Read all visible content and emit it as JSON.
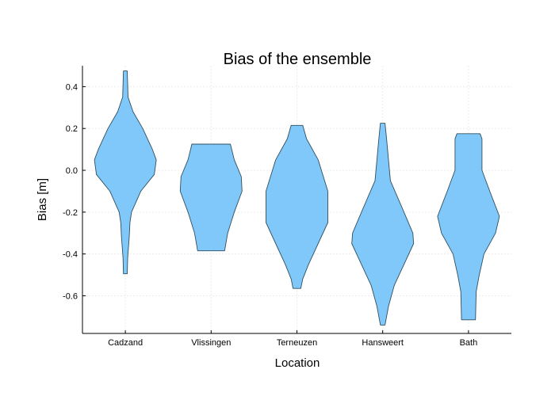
{
  "chart_data": {
    "type": "violin",
    "title": "Bias of the ensemble",
    "xlabel": "Location",
    "ylabel": "Bias [m]",
    "categories": [
      "Cadzand",
      "Vlissingen",
      "Terneuzen",
      "Hansweert",
      "Bath"
    ],
    "ylim": [
      -0.78,
      0.5
    ],
    "yticks": [
      0.4,
      0.2,
      0.0,
      -0.2,
      -0.4,
      -0.6
    ],
    "ytick_labels": [
      "0.4",
      "0.2",
      "0.0",
      "-0.2",
      "-0.4",
      "-0.6"
    ],
    "grid": true,
    "fill_color": "#80c8fa",
    "edge_color": "#2f4f5f",
    "series": [
      {
        "category": "Cadzand",
        "profile": [
          [
            0.475,
            0.05
          ],
          [
            0.35,
            0.07
          ],
          [
            0.28,
            0.2
          ],
          [
            0.2,
            0.45
          ],
          [
            0.1,
            0.7
          ],
          [
            0.05,
            0.8
          ],
          [
            -0.02,
            0.75
          ],
          [
            -0.1,
            0.4
          ],
          [
            -0.2,
            0.16
          ],
          [
            -0.25,
            0.12
          ],
          [
            -0.32,
            0.1
          ],
          [
            -0.42,
            0.06
          ],
          [
            -0.495,
            0.05
          ]
        ]
      },
      {
        "category": "Vlissingen",
        "profile": [
          [
            0.125,
            0.5
          ],
          [
            0.05,
            0.6
          ],
          [
            -0.03,
            0.78
          ],
          [
            -0.1,
            0.8
          ],
          [
            -0.2,
            0.6
          ],
          [
            -0.3,
            0.43
          ],
          [
            -0.385,
            0.35
          ]
        ]
      },
      {
        "category": "Terneuzen",
        "profile": [
          [
            0.215,
            0.15
          ],
          [
            0.15,
            0.25
          ],
          [
            0.05,
            0.55
          ],
          [
            -0.1,
            0.8
          ],
          [
            -0.25,
            0.8
          ],
          [
            -0.35,
            0.55
          ],
          [
            -0.45,
            0.3
          ],
          [
            -0.52,
            0.15
          ],
          [
            -0.565,
            0.1
          ]
        ]
      },
      {
        "category": "Hansweert",
        "profile": [
          [
            0.225,
            0.06
          ],
          [
            0.15,
            0.1
          ],
          [
            -0.05,
            0.2
          ],
          [
            -0.2,
            0.55
          ],
          [
            -0.3,
            0.78
          ],
          [
            -0.35,
            0.8
          ],
          [
            -0.45,
            0.55
          ],
          [
            -0.55,
            0.3
          ],
          [
            -0.65,
            0.15
          ],
          [
            -0.74,
            0.06
          ]
        ]
      },
      {
        "category": "Bath",
        "profile": [
          [
            0.175,
            0.3
          ],
          [
            0.15,
            0.35
          ],
          [
            0.0,
            0.35
          ],
          [
            -0.1,
            0.55
          ],
          [
            -0.22,
            0.8
          ],
          [
            -0.3,
            0.7
          ],
          [
            -0.4,
            0.4
          ],
          [
            -0.5,
            0.28
          ],
          [
            -0.58,
            0.2
          ],
          [
            -0.715,
            0.18
          ]
        ]
      }
    ]
  }
}
